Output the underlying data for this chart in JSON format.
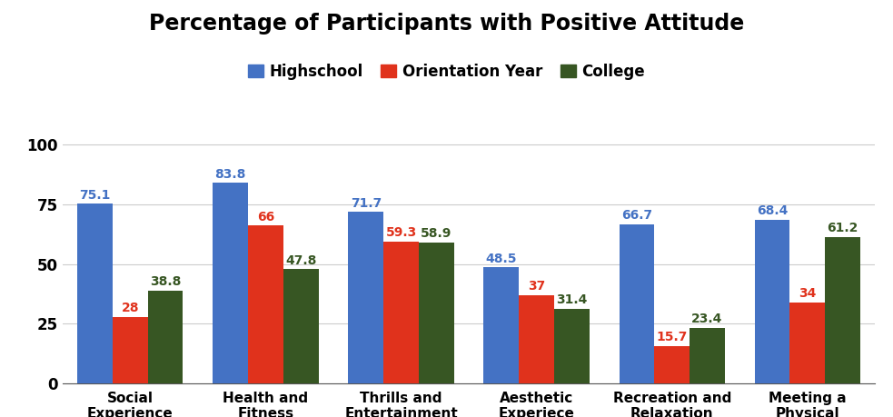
{
  "title": "Percentage of Participants with Positive Attitude",
  "categories": [
    "Social\nExperience",
    "Health and\nFitness",
    "Thrills and\nEntertainment",
    "Aesthetic\nExperiece",
    "Recreation and\nRelaxation",
    "Meeting a\nPhysical\nChallenge"
  ],
  "series": [
    {
      "label": "Highschool",
      "values": [
        75.1,
        83.8,
        71.7,
        48.5,
        66.7,
        68.4
      ],
      "color": "#4472C4"
    },
    {
      "label": "Orientation Year",
      "values": [
        28.0,
        66.0,
        59.3,
        37.0,
        15.7,
        34.0
      ],
      "color": "#E0321C"
    },
    {
      "label": "College",
      "values": [
        38.8,
        47.8,
        58.9,
        31.4,
        23.4,
        61.2
      ],
      "color": "#375623"
    }
  ],
  "ylim": [
    0,
    108
  ],
  "yticks": [
    0,
    25,
    50,
    75,
    100
  ],
  "bar_width": 0.26,
  "background_color": "#ffffff",
  "grid_color": "#cccccc",
  "title_fontsize": 17,
  "label_fontsize": 11,
  "tick_fontsize": 12,
  "legend_fontsize": 12,
  "value_fontsize": 10
}
